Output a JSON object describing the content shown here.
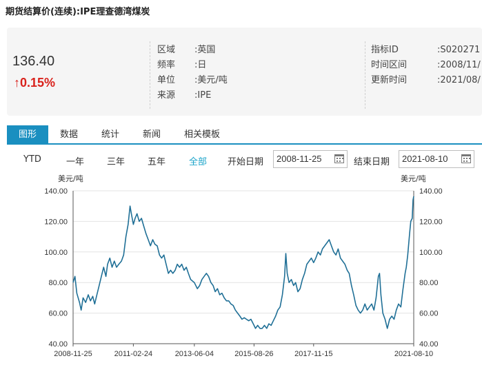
{
  "page": {
    "title": "期货结算价(连续):IPE理查德湾煤炭"
  },
  "quote": {
    "price": "136.40",
    "change": "0.15%",
    "change_color": "#d9221c"
  },
  "meta_left": [
    {
      "label": "区域",
      "value": "英国"
    },
    {
      "label": "频率",
      "value": "日"
    },
    {
      "label": "单位",
      "value": "美元/吨"
    },
    {
      "label": "来源",
      "value": "IPE"
    }
  ],
  "meta_right": [
    {
      "label": "指标ID",
      "value": "S020271"
    },
    {
      "label": "时间区间",
      "value": "2008/11/"
    },
    {
      "label": "更新时间",
      "value": "2021/08/"
    }
  ],
  "tabs": [
    "图形",
    "数据",
    "统计",
    "新闻",
    "相关模板"
  ],
  "active_tab": 0,
  "ranges": [
    "YTD",
    "一年",
    "三年",
    "五年",
    "全部"
  ],
  "active_range": 4,
  "date_filter": {
    "start_label": "开始日期",
    "start_value": "2008-11-25",
    "end_label": "结束日期",
    "end_value": "2021-08-10"
  },
  "colors": {
    "accent": "#1a8fc0",
    "line": "#1f6f96",
    "active_range": "#1aa3c9"
  },
  "chart_data": {
    "type": "line",
    "y_unit_left": "美元/吨",
    "y_unit_right": "美元/吨",
    "ylim": [
      40,
      140
    ],
    "yticks": [
      "40.00",
      "60.00",
      "80.00",
      "100.00",
      "120.00",
      "140.00"
    ],
    "xticks": [
      "2008-11-25",
      "2011-02-24",
      "2013-06-04",
      "2015-08-26",
      "2017-11-15",
      "2021-08-10"
    ],
    "x_start": "2008-11-25",
    "x_end": "2021-08-10",
    "grid": true,
    "series": [
      {
        "values": [
          [
            "2008-11-25",
            80
          ],
          [
            "2008-12-20",
            84
          ],
          [
            "2009-01-15",
            73
          ],
          [
            "2009-02-20",
            67
          ],
          [
            "2009-03-15",
            62
          ],
          [
            "2009-04-10",
            70
          ],
          [
            "2009-05-15",
            67
          ],
          [
            "2009-06-20",
            72
          ],
          [
            "2009-07-20",
            68
          ],
          [
            "2009-08-20",
            71
          ],
          [
            "2009-09-15",
            66
          ],
          [
            "2009-10-15",
            72
          ],
          [
            "2009-11-15",
            78
          ],
          [
            "2009-12-15",
            84
          ],
          [
            "2010-01-15",
            90
          ],
          [
            "2010-02-15",
            84
          ],
          [
            "2010-03-10",
            92
          ],
          [
            "2010-04-10",
            96
          ],
          [
            "2010-05-10",
            90
          ],
          [
            "2010-06-10",
            94
          ],
          [
            "2010-07-10",
            90
          ],
          [
            "2010-08-10",
            92
          ],
          [
            "2010-09-15",
            94
          ],
          [
            "2010-10-15",
            98
          ],
          [
            "2010-11-15",
            110
          ],
          [
            "2010-12-15",
            118
          ],
          [
            "2011-01-10",
            130
          ],
          [
            "2011-02-01",
            124
          ],
          [
            "2011-02-24",
            118
          ],
          [
            "2011-03-20",
            122
          ],
          [
            "2011-04-15",
            125
          ],
          [
            "2011-05-15",
            120
          ],
          [
            "2011-06-15",
            122
          ],
          [
            "2011-07-15",
            117
          ],
          [
            "2011-08-15",
            112
          ],
          [
            "2011-09-15",
            108
          ],
          [
            "2011-10-15",
            104
          ],
          [
            "2011-11-15",
            108
          ],
          [
            "2011-12-15",
            105
          ],
          [
            "2012-01-15",
            104
          ],
          [
            "2012-02-15",
            98
          ],
          [
            "2012-03-15",
            96
          ],
          [
            "2012-04-15",
            98
          ],
          [
            "2012-05-15",
            92
          ],
          [
            "2012-06-15",
            86
          ],
          [
            "2012-07-15",
            88
          ],
          [
            "2012-08-15",
            86
          ],
          [
            "2012-09-15",
            88
          ],
          [
            "2012-10-15",
            92
          ],
          [
            "2012-11-15",
            90
          ],
          [
            "2012-12-15",
            92
          ],
          [
            "2013-01-15",
            88
          ],
          [
            "2013-02-15",
            90
          ],
          [
            "2013-03-15",
            86
          ],
          [
            "2013-04-15",
            82
          ],
          [
            "2013-06-04",
            80
          ],
          [
            "2013-07-15",
            76
          ],
          [
            "2013-08-15",
            78
          ],
          [
            "2013-09-15",
            82
          ],
          [
            "2013-10-15",
            84
          ],
          [
            "2013-11-15",
            86
          ],
          [
            "2013-12-15",
            84
          ],
          [
            "2014-01-15",
            80
          ],
          [
            "2014-02-15",
            78
          ],
          [
            "2014-03-15",
            74
          ],
          [
            "2014-04-15",
            76
          ],
          [
            "2014-05-15",
            72
          ],
          [
            "2014-06-15",
            73
          ],
          [
            "2014-07-15",
            70
          ],
          [
            "2014-08-15",
            68
          ],
          [
            "2014-09-15",
            68
          ],
          [
            "2014-10-15",
            66
          ],
          [
            "2014-11-15",
            65
          ],
          [
            "2014-12-15",
            62
          ],
          [
            "2015-01-15",
            60
          ],
          [
            "2015-02-15",
            58
          ],
          [
            "2015-03-15",
            56
          ],
          [
            "2015-04-15",
            57
          ],
          [
            "2015-05-15",
            56
          ],
          [
            "2015-06-15",
            55
          ],
          [
            "2015-07-15",
            56
          ],
          [
            "2015-08-26",
            52
          ],
          [
            "2015-09-15",
            50
          ],
          [
            "2015-10-15",
            52
          ],
          [
            "2015-11-15",
            50
          ],
          [
            "2015-12-15",
            50
          ],
          [
            "2016-01-15",
            52
          ],
          [
            "2016-02-15",
            50
          ],
          [
            "2016-03-15",
            53
          ],
          [
            "2016-04-15",
            52
          ],
          [
            "2016-05-15",
            55
          ],
          [
            "2016-06-15",
            58
          ],
          [
            "2016-07-15",
            62
          ],
          [
            "2016-08-15",
            64
          ],
          [
            "2016-09-15",
            72
          ],
          [
            "2016-10-15",
            84
          ],
          [
            "2016-11-01",
            99
          ],
          [
            "2016-11-20",
            86
          ],
          [
            "2016-12-15",
            80
          ],
          [
            "2017-01-15",
            82
          ],
          [
            "2017-02-15",
            78
          ],
          [
            "2017-03-15",
            80
          ],
          [
            "2017-04-15",
            74
          ],
          [
            "2017-05-15",
            76
          ],
          [
            "2017-06-15",
            82
          ],
          [
            "2017-07-15",
            86
          ],
          [
            "2017-08-15",
            92
          ],
          [
            "2017-09-15",
            94
          ],
          [
            "2017-10-15",
            96
          ],
          [
            "2017-11-15",
            93
          ],
          [
            "2017-12-15",
            96
          ],
          [
            "2018-01-15",
            100
          ],
          [
            "2018-02-15",
            98
          ],
          [
            "2018-03-15",
            102
          ],
          [
            "2018-04-15",
            104
          ],
          [
            "2018-05-15",
            106
          ],
          [
            "2018-06-15",
            108
          ],
          [
            "2018-07-15",
            104
          ],
          [
            "2018-08-15",
            100
          ],
          [
            "2018-09-15",
            98
          ],
          [
            "2018-10-15",
            102
          ],
          [
            "2018-11-15",
            96
          ],
          [
            "2018-12-15",
            94
          ],
          [
            "2019-01-15",
            92
          ],
          [
            "2019-02-15",
            88
          ],
          [
            "2019-03-15",
            86
          ],
          [
            "2019-04-15",
            78
          ],
          [
            "2019-05-15",
            72
          ],
          [
            "2019-06-15",
            65
          ],
          [
            "2019-07-15",
            62
          ],
          [
            "2019-08-15",
            60
          ],
          [
            "2019-09-15",
            62
          ],
          [
            "2019-10-15",
            66
          ],
          [
            "2019-11-15",
            62
          ],
          [
            "2019-12-15",
            64
          ],
          [
            "2020-01-15",
            66
          ],
          [
            "2020-02-15",
            62
          ],
          [
            "2020-03-15",
            70
          ],
          [
            "2020-04-15",
            84
          ],
          [
            "2020-05-01",
            86
          ],
          [
            "2020-05-20",
            72
          ],
          [
            "2020-06-15",
            60
          ],
          [
            "2020-07-15",
            56
          ],
          [
            "2020-08-15",
            50
          ],
          [
            "2020-09-15",
            56
          ],
          [
            "2020-10-15",
            58
          ],
          [
            "2020-11-15",
            56
          ],
          [
            "2020-12-15",
            62
          ],
          [
            "2021-01-15",
            66
          ],
          [
            "2021-02-15",
            64
          ],
          [
            "2021-03-15",
            75
          ],
          [
            "2021-04-15",
            86
          ],
          [
            "2021-05-01",
            90
          ],
          [
            "2021-05-20",
            98
          ],
          [
            "2021-06-15",
            112
          ],
          [
            "2021-07-01",
            120
          ],
          [
            "2021-07-20",
            122
          ],
          [
            "2021-08-01",
            134
          ],
          [
            "2021-08-10",
            136.4
          ]
        ]
      }
    ]
  }
}
